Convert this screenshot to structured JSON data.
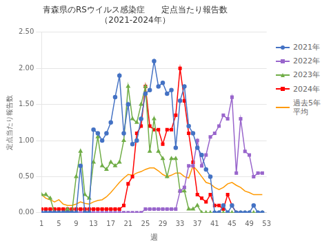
{
  "chart_data": {
    "type": "line",
    "title": "青森県のRSウイルス感染症　　定点当たり報告数\n（2021-2024年）",
    "xlabel": "週",
    "ylabel": "定点当たり報告数",
    "x": [
      1,
      2,
      3,
      4,
      5,
      6,
      7,
      8,
      9,
      10,
      11,
      12,
      13,
      14,
      15,
      16,
      17,
      18,
      19,
      20,
      21,
      22,
      23,
      24,
      25,
      26,
      27,
      28,
      29,
      30,
      31,
      32,
      33,
      34,
      35,
      36,
      37,
      38,
      39,
      40,
      41,
      42,
      43,
      44,
      45,
      46,
      47,
      48,
      49,
      50,
      51,
      52,
      53
    ],
    "xlim": [
      1,
      53
    ],
    "xticks": [
      1,
      5,
      9,
      13,
      17,
      21,
      25,
      29,
      33,
      37,
      41,
      45,
      49,
      53
    ],
    "ylim": [
      0,
      2.5
    ],
    "yticks": [
      {
        "value": 0.0,
        "label": "0.00"
      },
      {
        "value": 0.5,
        "label": "0.50"
      },
      {
        "value": 1.0,
        "label": "1.00"
      },
      {
        "value": 1.5,
        "label": "1.50"
      },
      {
        "value": 2.0,
        "label": "2.00"
      },
      {
        "value": 2.5,
        "label": "2.50"
      }
    ],
    "grid": "y",
    "legend": "upper right",
    "series": [
      {
        "name": "2021年",
        "color": "#4472C4",
        "marker": "circle",
        "values": [
          0.0,
          0.0,
          0.0,
          0.0,
          0.0,
          0.0,
          0.0,
          0.0,
          0.0,
          0.65,
          0.0,
          0.0,
          1.15,
          1.1,
          1.0,
          1.1,
          1.25,
          1.6,
          1.9,
          1.1,
          1.5,
          0.95,
          1.0,
          1.3,
          1.65,
          1.7,
          2.1,
          1.75,
          1.8,
          1.65,
          1.7,
          0.9,
          1.55,
          1.75,
          1.2,
          1.1,
          0.9,
          0.8,
          0.6,
          0.5,
          0.0,
          0.0,
          0.1,
          0.0,
          0.1,
          0.0,
          0.0,
          0.0,
          0.0,
          0.1,
          0.0,
          0.0,
          null
        ]
      },
      {
        "name": "2022年",
        "color": "#9966CC",
        "marker": "square",
        "values": [
          0.0,
          0.0,
          0.0,
          0.0,
          0.0,
          0.0,
          0.0,
          0.0,
          0.0,
          0.0,
          0.0,
          0.0,
          0.0,
          0.0,
          0.0,
          0.0,
          0.0,
          0.0,
          0.0,
          0.0,
          0.0,
          0.0,
          0.0,
          0.0,
          0.05,
          0.05,
          0.05,
          0.05,
          0.05,
          0.05,
          0.05,
          0.05,
          0.3,
          0.35,
          0.65,
          0.65,
          1.0,
          0.65,
          0.8,
          1.05,
          1.1,
          1.2,
          1.35,
          1.3,
          1.6,
          0.55,
          1.3,
          0.85,
          0.8,
          0.5,
          0.55,
          0.55,
          null
        ]
      },
      {
        "name": "2023年",
        "color": "#70AD47",
        "marker": "triangle",
        "values": [
          0.25,
          0.25,
          0.2,
          0.0,
          0.0,
          0.0,
          0.05,
          0.0,
          0.5,
          0.85,
          0.25,
          0.2,
          0.7,
          1.05,
          0.65,
          0.6,
          0.7,
          0.65,
          0.7,
          1.0,
          1.75,
          1.3,
          1.25,
          1.5,
          1.75,
          0.85,
          1.3,
          0.85,
          0.75,
          0.5,
          0.75,
          0.75,
          0.3,
          0.3,
          0.05,
          0.05,
          0.1,
          0.0,
          0.0,
          0.0,
          0.0,
          0.0,
          0.0,
          0.0,
          0.0,
          0.0,
          0.0,
          0.0,
          0.0,
          0.0,
          0.0,
          0.0,
          null
        ]
      },
      {
        "name": "2024年",
        "color": "#FF0000",
        "marker": "square",
        "values": [
          0.05,
          0.05,
          0.05,
          0.05,
          0.05,
          0.05,
          0.05,
          0.05,
          0.05,
          0.05,
          0.05,
          0.05,
          0.05,
          0.05,
          0.05,
          0.05,
          0.05,
          0.05,
          0.05,
          0.1,
          0.4,
          0.5,
          1.1,
          1.2,
          1.75,
          1.2,
          1.15,
          1.15,
          0.95,
          1.15,
          1.15,
          1.35,
          2.0,
          1.55,
          1.1,
          0.7,
          0.25,
          0.2,
          0.15,
          0.25,
          0.1,
          0.1,
          0.05,
          0.25,
          0.1,
          0.0,
          null,
          null,
          null,
          null,
          null,
          null,
          null
        ]
      },
      {
        "name": "過去5年\n平均",
        "color": "#FF9900",
        "values": [
          0.25,
          0.2,
          0.18,
          0.15,
          0.18,
          0.12,
          0.1,
          0.1,
          0.12,
          0.15,
          0.13,
          0.12,
          0.15,
          0.17,
          0.18,
          0.22,
          0.28,
          0.35,
          0.42,
          0.48,
          0.53,
          0.52,
          0.55,
          0.57,
          0.6,
          0.62,
          0.62,
          0.58,
          0.53,
          0.5,
          0.52,
          0.55,
          0.55,
          0.5,
          0.48,
          0.65,
          0.58,
          0.5,
          0.42,
          0.4,
          0.35,
          0.32,
          0.35,
          0.4,
          0.42,
          0.38,
          0.35,
          0.3,
          0.28,
          0.25,
          0.25,
          0.25,
          null
        ]
      }
    ]
  }
}
